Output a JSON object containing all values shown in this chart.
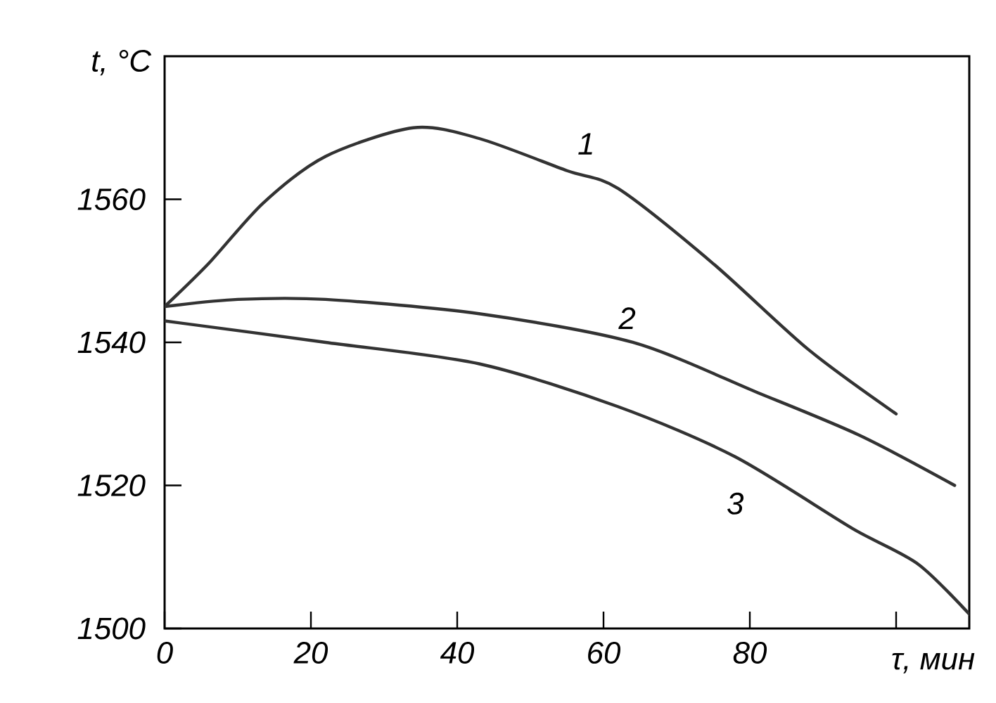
{
  "chart_data": {
    "type": "line",
    "xlabel": "τ, мин",
    "ylabel": "t, °C",
    "xlim": [
      0,
      110
    ],
    "ylim": [
      1500,
      1580
    ],
    "xticks": [
      0,
      20,
      40,
      60,
      80,
      {
        "value": 100,
        "label": null
      }
    ],
    "yticks": [
      1500,
      1520,
      1540,
      1560
    ],
    "grid": false,
    "legend": false,
    "marker": "none",
    "line_style": "solid",
    "series": [
      {
        "name": "1",
        "color": "#333333",
        "x": [
          0,
          6,
          13.5,
          22,
          34,
          43,
          55,
          62,
          75,
          88,
          100
        ],
        "values": [
          1545,
          1551,
          1559.5,
          1566,
          1570,
          1568.5,
          1564,
          1561.5,
          1551,
          1539,
          1530
        ]
      },
      {
        "name": "2",
        "color": "#333333",
        "x": [
          0,
          10,
          22,
          43,
          64,
          81,
          95,
          108
        ],
        "values": [
          1545,
          1546,
          1546,
          1544,
          1540,
          1533,
          1527,
          1520
        ]
      },
      {
        "name": "3",
        "color": "#333333",
        "x": [
          0,
          22,
          43,
          62,
          78,
          94,
          103,
          110
        ],
        "values": [
          1543,
          1540,
          1537,
          1531,
          1524,
          1514,
          1509,
          1502
        ]
      }
    ]
  }
}
